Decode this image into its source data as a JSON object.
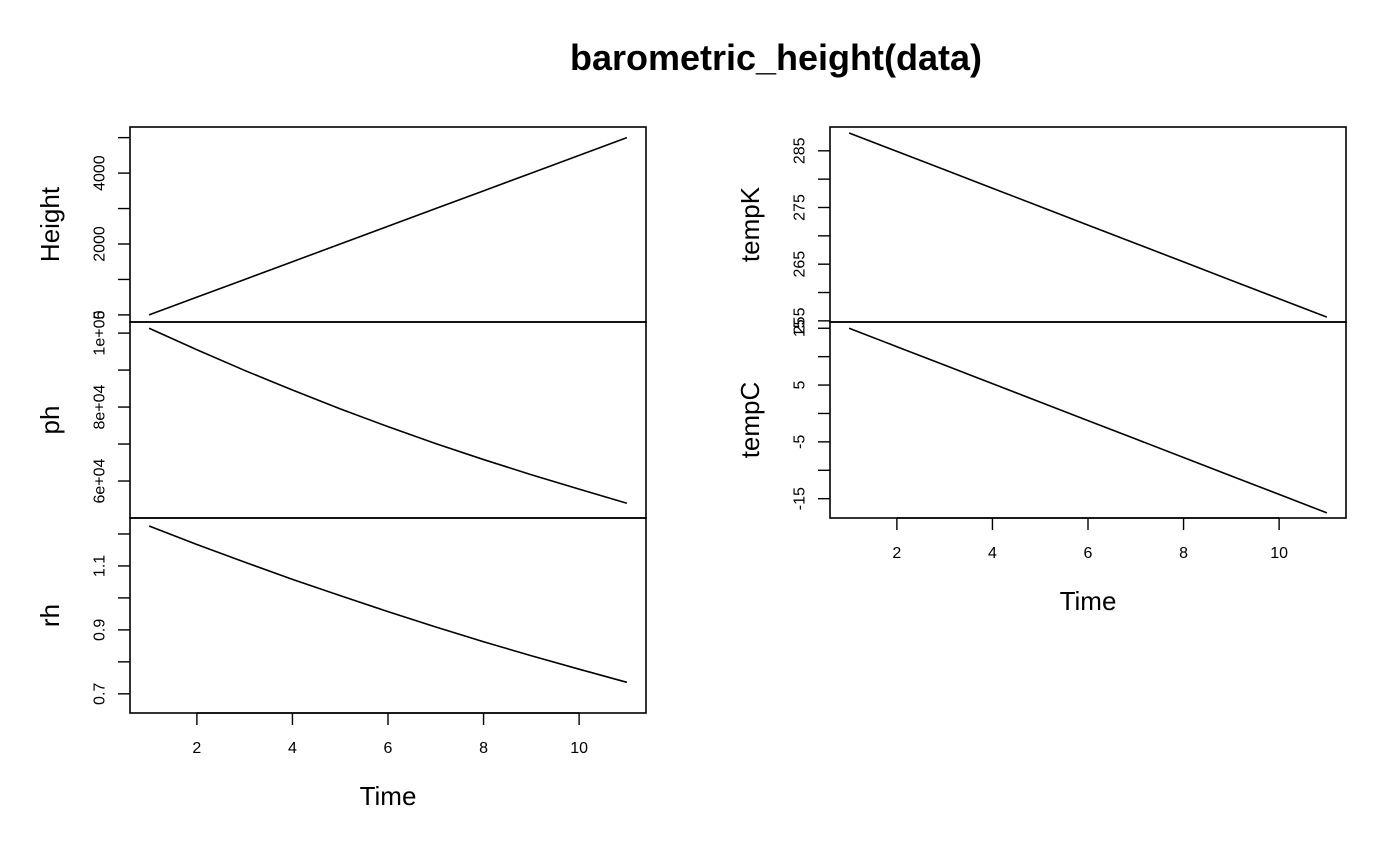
{
  "chart_data": {
    "type": "line",
    "title": "barometric_height(data)",
    "x": [
      1,
      2,
      3,
      4,
      5,
      6,
      7,
      8,
      9,
      10,
      11
    ],
    "xlabel": "Time",
    "xticks": [
      2,
      4,
      6,
      8,
      10
    ],
    "panels": [
      {
        "name": "Height",
        "ylabel": "Height",
        "ylim": [
          -200,
          5300
        ],
        "yticks": [
          0,
          1000,
          2000,
          3000,
          4000,
          5000
        ],
        "ytick_labels": [
          "0",
          "",
          "2000",
          "",
          "4000",
          ""
        ],
        "values": [
          0,
          500,
          1000,
          1500,
          2000,
          2500,
          3000,
          3500,
          4000,
          4500,
          5000
        ]
      },
      {
        "name": "ph",
        "ylabel": "ph",
        "ylim": [
          50000,
          103000
        ],
        "yticks": [
          60000,
          70000,
          80000,
          90000,
          100000
        ],
        "ytick_labels": [
          "6e+04",
          "",
          "8e+04",
          "",
          "1e+05"
        ],
        "values": [
          101300,
          95500,
          89900,
          84600,
          79500,
          74700,
          70100,
          65800,
          61700,
          57800,
          54000
        ]
      },
      {
        "name": "rh",
        "ylabel": "rh",
        "ylim": [
          0.64,
          1.25
        ],
        "yticks": [
          0.7,
          0.8,
          0.9,
          1.0,
          1.1,
          1.2
        ],
        "ytick_labels": [
          "0.7",
          "",
          "0.9",
          "",
          "1.1",
          ""
        ],
        "values": [
          1.225,
          1.167,
          1.112,
          1.058,
          1.007,
          0.957,
          0.909,
          0.863,
          0.819,
          0.777,
          0.736
        ]
      },
      {
        "name": "tempK",
        "ylabel": "tempK",
        "ylim": [
          254.8,
          289.2
        ],
        "yticks": [
          255,
          260,
          265,
          270,
          275,
          280,
          285
        ],
        "ytick_labels": [
          "255",
          "",
          "265",
          "",
          "275",
          "",
          "285"
        ],
        "values": [
          288.15,
          284.9,
          281.65,
          278.4,
          275.15,
          271.9,
          268.65,
          265.4,
          262.15,
          258.9,
          255.65
        ]
      },
      {
        "name": "tempC",
        "ylabel": "tempC",
        "ylim": [
          -18.4,
          16.1
        ],
        "yticks": [
          -15,
          -10,
          -5,
          0,
          5,
          10,
          15
        ],
        "ytick_labels": [
          "-15",
          "",
          "-5",
          "",
          "5",
          "",
          "15"
        ],
        "values": [
          15,
          11.75,
          8.5,
          5.25,
          2,
          -1.25,
          -4.5,
          -7.75,
          -11,
          -14.25,
          -17.5
        ]
      }
    ]
  }
}
